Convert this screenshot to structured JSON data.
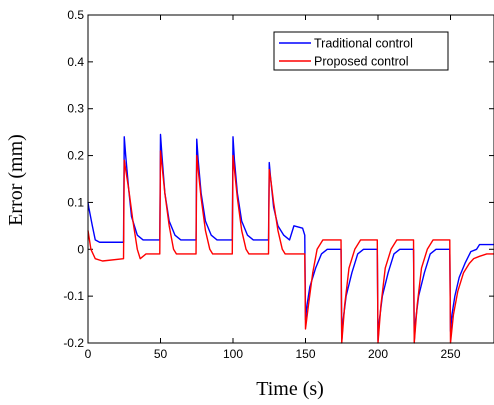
{
  "chart_data": {
    "type": "line",
    "title": "",
    "xlabel": "Time (s)",
    "ylabel": "Error (mm)",
    "xlim": [
      0,
      280
    ],
    "ylim": [
      -0.2,
      0.5
    ],
    "xticks": [
      0,
      50,
      100,
      150,
      200,
      250
    ],
    "yticks": [
      -0.2,
      -0.1,
      0,
      0.1,
      0.2,
      0.3,
      0.4,
      0.5
    ],
    "xtick_labels": [
      "0",
      "50",
      "100",
      "150",
      "200",
      "250"
    ],
    "ytick_labels": [
      "-0.2",
      "-0.1",
      "0",
      "0.1",
      "0.2",
      "0.3",
      "0.4",
      "0.5"
    ],
    "grid": false,
    "legend_position": "top-right",
    "series": [
      {
        "name": "Traditional control",
        "color": "#0000ff",
        "x": [
          0,
          0.5,
          3,
          5,
          8,
          24.5,
          25,
          26,
          28,
          30,
          34,
          38,
          40,
          49.5,
          50,
          51,
          53,
          56,
          60,
          64,
          74.5,
          75,
          76,
          78,
          81,
          85,
          89,
          99.5,
          100,
          101,
          103,
          106,
          110,
          114,
          124.5,
          125,
          126,
          128,
          131,
          135,
          139,
          142,
          148,
          149.5,
          150,
          151,
          153,
          157,
          161,
          165,
          174.5,
          175,
          176,
          178,
          182,
          186,
          190,
          199.5,
          200,
          201,
          203,
          207,
          211,
          215,
          224.5,
          225,
          226,
          228,
          232,
          236,
          240,
          249.5,
          250,
          251,
          253,
          256,
          260,
          264,
          268,
          270,
          275,
          280
        ],
        "y": [
          0.1,
          0.09,
          0.05,
          0.02,
          0.015,
          0.015,
          0.24,
          0.2,
          0.13,
          0.07,
          0.03,
          0.02,
          0.02,
          0.02,
          0.245,
          0.2,
          0.12,
          0.06,
          0.03,
          0.02,
          0.02,
          0.235,
          0.19,
          0.12,
          0.06,
          0.03,
          0.02,
          0.02,
          0.24,
          0.19,
          0.12,
          0.06,
          0.03,
          0.02,
          0.02,
          0.185,
          0.15,
          0.09,
          0.05,
          0.03,
          0.02,
          0.05,
          0.045,
          0.03,
          -0.15,
          -0.12,
          -0.08,
          -0.04,
          -0.01,
          0.0,
          0.0,
          -0.195,
          -0.15,
          -0.1,
          -0.05,
          -0.01,
          0.0,
          0.0,
          -0.195,
          -0.15,
          -0.1,
          -0.05,
          -0.01,
          0.0,
          0.0,
          -0.195,
          -0.15,
          -0.1,
          -0.05,
          -0.01,
          0.0,
          0.0,
          -0.175,
          -0.14,
          -0.1,
          -0.06,
          -0.03,
          -0.005,
          0.0,
          0.01,
          0.01,
          0.01
        ]
      },
      {
        "name": "Proposed control",
        "color": "#ff0000",
        "x": [
          0,
          2,
          5,
          10,
          24.5,
          25,
          26,
          28,
          31,
          34,
          36,
          40,
          49.5,
          50,
          51,
          53,
          56,
          59,
          61,
          65,
          74.5,
          75,
          76,
          78,
          81,
          84,
          86,
          90,
          99.5,
          100,
          101,
          103,
          106,
          109,
          111,
          115,
          124.5,
          125,
          126,
          128,
          131,
          134,
          136,
          140,
          149.5,
          150,
          152,
          155,
          158,
          162,
          165,
          174.5,
          175,
          177,
          180,
          184,
          188,
          190,
          199.5,
          200,
          202,
          205,
          209,
          213,
          215,
          224.5,
          225,
          227,
          230,
          234,
          238,
          240,
          249.5,
          250,
          252,
          255,
          259,
          263,
          266,
          270,
          275,
          280
        ],
        "y": [
          0.04,
          0.0,
          -0.02,
          -0.025,
          -0.02,
          0.19,
          0.17,
          0.13,
          0.06,
          0.0,
          -0.02,
          -0.01,
          -0.01,
          0.21,
          0.18,
          0.12,
          0.05,
          0.0,
          -0.01,
          -0.01,
          -0.01,
          0.2,
          0.17,
          0.11,
          0.04,
          0.0,
          -0.01,
          -0.01,
          -0.01,
          0.2,
          0.17,
          0.11,
          0.04,
          0.0,
          -0.01,
          -0.01,
          -0.01,
          0.17,
          0.15,
          0.1,
          0.04,
          0.0,
          -0.01,
          -0.01,
          -0.01,
          -0.17,
          -0.12,
          -0.05,
          0.0,
          0.02,
          0.02,
          0.02,
          -0.2,
          -0.12,
          -0.04,
          0.0,
          0.02,
          0.02,
          0.02,
          -0.2,
          -0.12,
          -0.04,
          0.0,
          0.02,
          0.02,
          0.02,
          -0.2,
          -0.12,
          -0.04,
          0.0,
          0.02,
          0.02,
          0.02,
          -0.2,
          -0.14,
          -0.09,
          -0.05,
          -0.03,
          -0.02,
          -0.015,
          -0.01,
          -0.01
        ]
      }
    ]
  }
}
